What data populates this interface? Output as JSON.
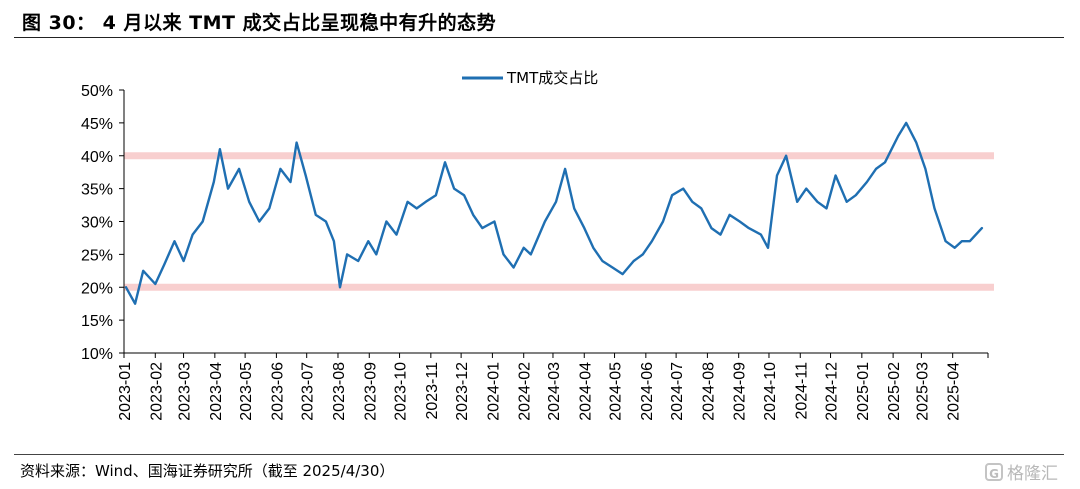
{
  "title": "图 30： 4 月以来 TMT 成交占比呈现稳中有升的态势",
  "source": "资料来源：Wind、国海证券研究所（截至 2025/4/30）",
  "watermark": "格隆汇",
  "colors": {
    "line": "#1f6fb2",
    "band": "#f8cfcf",
    "axis": "#000000"
  },
  "chart_data": {
    "type": "line",
    "title": "",
    "xlabel": "",
    "ylabel": "",
    "grid": false,
    "legend_position": "top-center",
    "ylim": [
      0.1,
      0.5
    ],
    "y_ticks": [
      "10%",
      "15%",
      "20%",
      "25%",
      "30%",
      "35%",
      "40%",
      "45%",
      "50%"
    ],
    "x_ticks": [
      "2023-01",
      "2023-02",
      "2023-03",
      "2023-04",
      "2023-05",
      "2023-06",
      "2023-07",
      "2023-08",
      "2023-09",
      "2023-10",
      "2023-11",
      "2023-12",
      "2024-01",
      "2024-02",
      "2024-03",
      "2024-04",
      "2024-05",
      "2024-06",
      "2024-07",
      "2024-08",
      "2024-09",
      "2024-10",
      "2024-11",
      "2024-12",
      "2025-01",
      "2025-02",
      "2025-03",
      "2025-04"
    ],
    "reference_lines": [
      0.2,
      0.4
    ],
    "series": [
      {
        "name": "TMT成交占比",
        "x": [
          "2023-01-03",
          "2023-01-12",
          "2023-01-20",
          "2023-02-01",
          "2023-02-10",
          "2023-02-20",
          "2023-03-01",
          "2023-03-10",
          "2023-03-20",
          "2023-03-31",
          "2023-04-06",
          "2023-04-14",
          "2023-04-25",
          "2023-05-05",
          "2023-05-15",
          "2023-05-25",
          "2023-06-05",
          "2023-06-15",
          "2023-06-21",
          "2023-06-30",
          "2023-07-10",
          "2023-07-20",
          "2023-07-28",
          "2023-08-03",
          "2023-08-10",
          "2023-08-21",
          "2023-08-31",
          "2023-09-08",
          "2023-09-18",
          "2023-09-28",
          "2023-10-09",
          "2023-10-18",
          "2023-10-27",
          "2023-11-06",
          "2023-11-15",
          "2023-11-24",
          "2023-12-04",
          "2023-12-13",
          "2023-12-22",
          "2024-01-03",
          "2024-01-12",
          "2024-01-22",
          "2024-02-01",
          "2024-02-08",
          "2024-02-22",
          "2024-03-04",
          "2024-03-13",
          "2024-03-22",
          "2024-04-01",
          "2024-04-10",
          "2024-04-19",
          "2024-04-29",
          "2024-05-09",
          "2024-05-20",
          "2024-05-29",
          "2024-06-07",
          "2024-06-18",
          "2024-06-27",
          "2024-07-08",
          "2024-07-17",
          "2024-07-26",
          "2024-08-05",
          "2024-08-14",
          "2024-08-23",
          "2024-09-02",
          "2024-09-11",
          "2024-09-23",
          "2024-09-30",
          "2024-10-09",
          "2024-10-18",
          "2024-10-29",
          "2024-11-07",
          "2024-11-18",
          "2024-11-27",
          "2024-12-06",
          "2024-12-17",
          "2024-12-26",
          "2025-01-06",
          "2025-01-15",
          "2025-01-24",
          "2025-02-06",
          "2025-02-14",
          "2025-02-24",
          "2025-03-05",
          "2025-03-14",
          "2025-03-25",
          "2025-04-03",
          "2025-04-10",
          "2025-04-18",
          "2025-04-30"
        ],
        "y": [
          0.2,
          0.175,
          0.225,
          0.205,
          0.235,
          0.27,
          0.24,
          0.28,
          0.3,
          0.36,
          0.41,
          0.35,
          0.38,
          0.33,
          0.3,
          0.32,
          0.38,
          0.36,
          0.42,
          0.37,
          0.31,
          0.3,
          0.27,
          0.2,
          0.25,
          0.24,
          0.27,
          0.25,
          0.3,
          0.28,
          0.33,
          0.32,
          0.33,
          0.34,
          0.39,
          0.35,
          0.34,
          0.31,
          0.29,
          0.3,
          0.25,
          0.23,
          0.26,
          0.25,
          0.3,
          0.33,
          0.38,
          0.32,
          0.29,
          0.26,
          0.24,
          0.23,
          0.22,
          0.24,
          0.25,
          0.27,
          0.3,
          0.34,
          0.35,
          0.33,
          0.32,
          0.29,
          0.28,
          0.31,
          0.3,
          0.29,
          0.28,
          0.26,
          0.37,
          0.4,
          0.33,
          0.35,
          0.33,
          0.32,
          0.37,
          0.33,
          0.34,
          0.36,
          0.38,
          0.39,
          0.43,
          0.45,
          0.42,
          0.38,
          0.32,
          0.27,
          0.26,
          0.27,
          0.27,
          0.29
        ]
      }
    ]
  }
}
